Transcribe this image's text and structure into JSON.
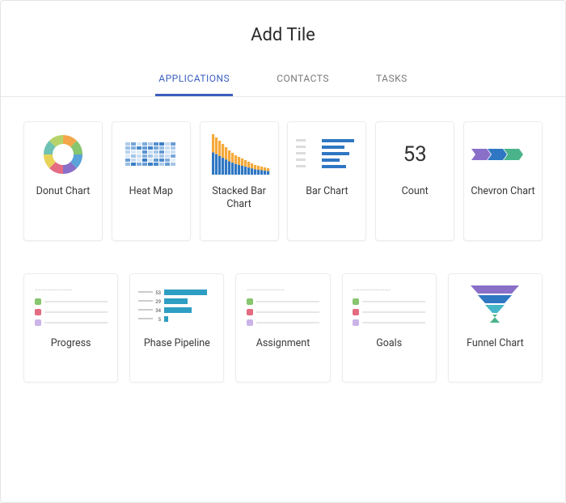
{
  "title": "Add Tile",
  "tabs": [
    {
      "label": "APPLICATIONS",
      "active": true
    },
    {
      "label": "CONTACTS",
      "active": false
    },
    {
      "label": "TASKS",
      "active": false
    }
  ],
  "colors": {
    "accent": "#3b5fbf",
    "tab_inactive": "#7a7a7a",
    "border": "#ececec",
    "text": "#3a3a3a"
  },
  "tiles_row1": [
    {
      "id": "donut-chart",
      "label": "Donut Chart",
      "preview": {
        "type": "donut",
        "slice_colors": [
          "#f4a64b",
          "#87c56e",
          "#5aa3d8",
          "#8a6fc9",
          "#e46b81",
          "#e9d25a",
          "#6ec2b4",
          "#b6d36a"
        ]
      }
    },
    {
      "id": "heat-map",
      "label": "Heat Map",
      "preview": {
        "type": "heatmap",
        "cols": 9,
        "rows": 6,
        "palette_low": "#e9f2fb",
        "palette_high": "#2f77c3"
      }
    },
    {
      "id": "stacked-bar-chart",
      "label": "Stacked Bar Chart",
      "preview": {
        "type": "stacked_bar",
        "bar_count": 18,
        "heights": [
          50,
          46,
          42,
          38,
          34,
          30,
          27,
          24,
          22,
          20,
          18,
          16,
          14,
          12,
          11,
          10,
          9,
          8
        ],
        "color_top": "#f5a93b",
        "color_bottom": "#2f77c3"
      }
    },
    {
      "id": "bar-chart",
      "label": "Bar Chart",
      "preview": {
        "type": "hbar",
        "values": [
          40,
          28,
          34,
          22,
          30
        ],
        "bar_color": "#2f77c3",
        "label_color": "#b9b9b9"
      }
    },
    {
      "id": "count",
      "label": "Count",
      "preview": {
        "type": "count",
        "value": "53"
      }
    },
    {
      "id": "chevron-chart",
      "label": "Chevron Chart",
      "preview": {
        "type": "chevron",
        "segments": [
          "#8a6fc9",
          "#2f77c3",
          "#4bb38a"
        ]
      }
    }
  ],
  "tiles_row2": [
    {
      "id": "progress",
      "label": "Progress",
      "preview": {
        "type": "mini_rows",
        "row_colors": [
          "#87c56e",
          "#e46b81",
          "#cbb4e8"
        ]
      }
    },
    {
      "id": "phase-pipeline",
      "label": "Phase Pipeline",
      "preview": {
        "type": "pipeline",
        "values": [
          53,
          29,
          34,
          5
        ],
        "bar_color": "#2f9ec3",
        "label_color": "#9a9a9a"
      }
    },
    {
      "id": "assignment",
      "label": "Assignment",
      "preview": {
        "type": "mini_rows",
        "row_colors": [
          "#87c56e",
          "#e46b81",
          "#cbb4e8"
        ]
      }
    },
    {
      "id": "goals",
      "label": "Goals",
      "preview": {
        "type": "mini_rows",
        "row_colors": [
          "#87c56e",
          "#e46b81",
          "#cbb4e8"
        ]
      }
    },
    {
      "id": "funnel-chart",
      "label": "Funnel Chart",
      "preview": {
        "type": "funnel",
        "segments": [
          "#8a6fc9",
          "#2f77c3",
          "#46b7c9",
          "#4bb38a"
        ]
      }
    }
  ]
}
